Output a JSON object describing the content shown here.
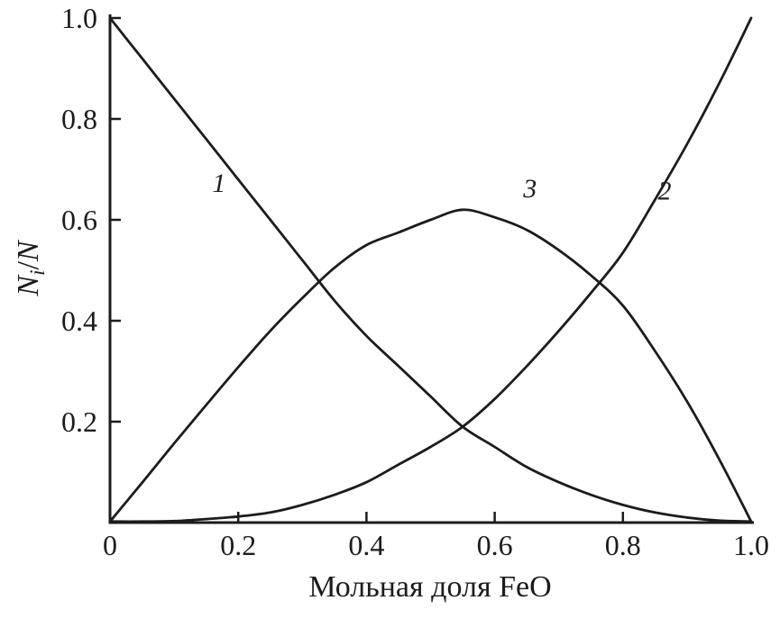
{
  "figure": {
    "background": "#ffffff",
    "stroke_color": "#1c1c1c",
    "ylabel_main": "N",
    "ylabel_sub": "i",
    "ylabel_slash": "/",
    "ylabel_denominator": "N"
  },
  "chart_data": {
    "type": "line",
    "title": "",
    "xlabel": "Мольная доля FeO",
    "ylabel": "Ni/N",
    "xlim": [
      0,
      1.0
    ],
    "ylim": [
      0,
      1.0
    ],
    "grid": false,
    "legend": "inline curve numerals (italic), no legend box",
    "x_ticks": [
      0,
      0.2,
      0.4,
      0.6,
      0.8,
      1.0
    ],
    "x_tick_labels": [
      "0",
      "0.2",
      "0.4",
      "0.6",
      "0.8",
      "1.0"
    ],
    "y_ticks": [
      0.2,
      0.4,
      0.6,
      0.8,
      1.0
    ],
    "y_tick_labels": [
      "0.2",
      "0.4",
      "0.6",
      "0.8",
      "1.0"
    ],
    "x": [
      0,
      0.05,
      0.1,
      0.15,
      0.2,
      0.25,
      0.3,
      0.35,
      0.4,
      0.45,
      0.5,
      0.55,
      0.6,
      0.65,
      0.7,
      0.75,
      0.8,
      0.85,
      0.9,
      0.95,
      1.0
    ],
    "series": [
      {
        "name": "1",
        "values": [
          1.0,
          0.92,
          0.84,
          0.76,
          0.68,
          0.6,
          0.52,
          0.44,
          0.37,
          0.31,
          0.25,
          0.19,
          0.15,
          0.11,
          0.08,
          0.055,
          0.035,
          0.02,
          0.01,
          0.004,
          0.0
        ],
        "label": {
          "text": "1",
          "x": 0.17,
          "y": 0.655
        }
      },
      {
        "name": "2",
        "values": [
          0.0,
          0.001,
          0.003,
          0.007,
          0.012,
          0.02,
          0.035,
          0.055,
          0.08,
          0.115,
          0.15,
          0.19,
          0.245,
          0.31,
          0.38,
          0.455,
          0.535,
          0.64,
          0.75,
          0.87,
          1.0
        ],
        "label": {
          "text": "2",
          "x": 0.865,
          "y": 0.64
        }
      },
      {
        "name": "3",
        "values": [
          0.0,
          0.079,
          0.157,
          0.233,
          0.308,
          0.38,
          0.445,
          0.505,
          0.55,
          0.575,
          0.6,
          0.62,
          0.605,
          0.58,
          0.54,
          0.49,
          0.43,
          0.34,
          0.24,
          0.126,
          0.0
        ],
        "label": {
          "text": "3",
          "x": 0.655,
          "y": 0.645
        }
      }
    ],
    "crossings_note": "curves 1 and 3 cross near (0.33, 0.47); curves 1 and 2 cross near (0.55, 0.19); curves 2 and 3 cross near (0.77, 0.47); curve 3 peaks near (0.56, 0.62)"
  }
}
